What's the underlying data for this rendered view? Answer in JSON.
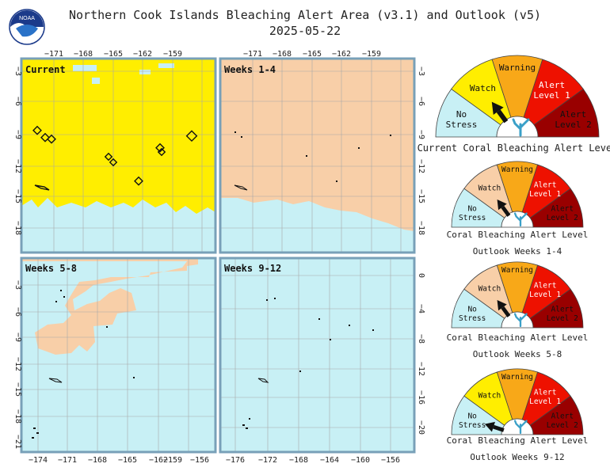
{
  "header": {
    "title": "Northern Cook Islands Bleaching Alert Area (v3.1) and Outlook (v5)",
    "date": "2025-05-22"
  },
  "logo": {
    "text": "NOAA"
  },
  "colors": {
    "no_stress": "#c8f0f5",
    "watch": "#ffee00",
    "warning": "#f8a818",
    "alert1": "#ee1100",
    "alert2": "#990000",
    "outlook_watch": "#f8cfa8",
    "frame": "#78a0b8",
    "grid": "#a8a8a8"
  },
  "maps": [
    {
      "label": "Current",
      "top_ticks": [
        "−171",
        "−168",
        "−165",
        "−162",
        "−159"
      ],
      "left_ticks": [
        "−3",
        "−6",
        "−9",
        "−12",
        "−15",
        "−18"
      ]
    },
    {
      "label": "Weeks 1-4",
      "top_ticks": [
        "−171",
        "−168",
        "−165",
        "−162",
        "−159"
      ],
      "right_ticks": [
        "−3",
        "−6",
        "−9",
        "−12",
        "−15",
        "−18"
      ]
    },
    {
      "label": "Weeks 5-8",
      "left_ticks": [
        "−3",
        "−6",
        "−9",
        "−12",
        "−15",
        "−18",
        "−21"
      ],
      "bottom_ticks": [
        "−174",
        "−171",
        "−168",
        "−165",
        "−162",
        "−159",
        "−156"
      ]
    },
    {
      "label": "Weeks 9-12",
      "right_ticks": [
        "0",
        "−4",
        "−8",
        "−12",
        "−16",
        "−20"
      ],
      "bottom_ticks": [
        "−176",
        "−172",
        "−168",
        "−164",
        "−160",
        "−156"
      ]
    }
  ],
  "gauge_labels": {
    "no_stress": [
      "No",
      "Stress"
    ],
    "watch": "Watch",
    "warning": "Warning",
    "alert1": [
      "Alert",
      "Level 1"
    ],
    "alert2": [
      "Alert",
      "Level 2"
    ]
  },
  "gauges": [
    {
      "caption": [
        "Current Coral Bleaching Alert Level"
      ],
      "level": "watch"
    },
    {
      "caption": [
        "Coral Bleaching Alert Level",
        "Outlook Weeks 1-4"
      ],
      "level": "outlook-watch"
    },
    {
      "caption": [
        "Coral Bleaching Alert Level",
        "Outlook Weeks 5-8"
      ],
      "level": "outlook-watch"
    },
    {
      "caption": [
        "Coral Bleaching Alert Level",
        "Outlook Weeks 9-12"
      ],
      "level": "no-stress"
    }
  ]
}
